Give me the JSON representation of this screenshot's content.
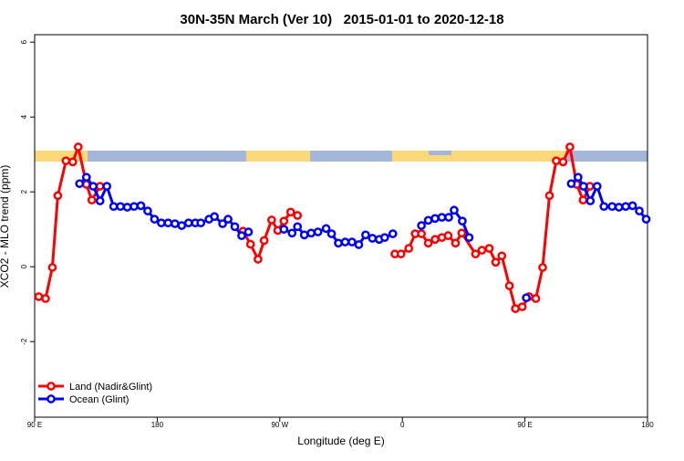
{
  "chart_data": {
    "type": "line",
    "title": "30N-35N March (Ver 10)   2015-01-01 to 2020-12-18",
    "xlabel": "Longitude (deg E)",
    "ylabel": "XCO2 - MLO trend (ppm)",
    "xlim": [
      90,
      540
    ],
    "ylim": [
      -4.02,
      6.2
    ],
    "xticks": [
      {
        "value": 90,
        "label": "90 E"
      },
      180,
      {
        "value": 270,
        "label": "90 W"
      },
      {
        "value": 360,
        "label": "0"
      },
      {
        "value": 450,
        "label": "90 E"
      },
      {
        "value": 540,
        "label": "180"
      }
    ],
    "yticks": [
      -2,
      0,
      2,
      4,
      6
    ],
    "legend": "bottom-left",
    "series": [
      {
        "name": "Land (Nadir&Glint)",
        "color": "#ff0000",
        "x": [
          93,
          98,
          103,
          107,
          113,
          118,
          122,
          128,
          132,
          138,
          null,
          243,
          248.5,
          254,
          258.5,
          264,
          268.5,
          273,
          278,
          283,
          null,
          354.5,
          359,
          364.7,
          369.4,
          374,
          379,
          384,
          389,
          393.6,
          399,
          403.6,
          413.7,
          418.4,
          423.8,
          428.5,
          433,
          438.6,
          443,
          448,
          453,
          458,
          463,
          468,
          473,
          478,
          483,
          488,
          492.7,
          497.7
        ],
        "values": [
          -0.8,
          -0.85,
          -0.02,
          1.9,
          2.83,
          2.8,
          3.2,
          2.2,
          1.78,
          2.15,
          null,
          0.95,
          0.6,
          0.2,
          0.7,
          1.25,
          0.97,
          1.22,
          1.46,
          1.37,
          null,
          0.34,
          0.34,
          0.49,
          0.88,
          0.88,
          0.63,
          0.73,
          0.78,
          0.83,
          0.63,
          0.9,
          0.34,
          0.44,
          0.49,
          0.12,
          0.29,
          -0.51,
          -1.12,
          -1.07,
          -0.8,
          -0.85,
          -0.02,
          1.9,
          2.83,
          2.8,
          3.2,
          2.2,
          1.78,
          2.15
        ]
      },
      {
        "name": "Ocean (Glint)",
        "color": "#0000ff",
        "x": [
          123,
          128,
          133,
          138,
          143,
          148,
          153,
          158,
          163,
          168,
          173,
          178,
          183,
          188,
          193,
          198,
          203,
          208,
          212,
          218,
          222,
          228,
          232,
          237,
          242,
          247,
          null,
          273,
          279,
          283,
          288,
          293,
          298,
          304,
          308,
          313,
          318,
          323,
          328,
          333,
          338,
          343,
          347,
          353,
          null,
          374,
          379,
          384,
          389,
          394,
          398,
          404,
          409,
          null,
          451,
          null,
          484,
          489,
          493,
          498,
          503,
          508,
          514,
          519,
          524,
          529,
          534,
          539
        ],
        "values": [
          2.22,
          2.39,
          2.15,
          1.76,
          2.15,
          1.61,
          1.61,
          1.59,
          1.61,
          1.63,
          1.49,
          1.27,
          1.17,
          1.17,
          1.15,
          1.1,
          1.17,
          1.17,
          1.17,
          1.27,
          1.34,
          1.15,
          1.27,
          1.07,
          0.83,
          0.93,
          null,
          1.0,
          0.9,
          1.07,
          0.85,
          0.9,
          0.93,
          1.02,
          0.88,
          0.63,
          0.66,
          0.66,
          0.59,
          0.85,
          0.76,
          0.73,
          0.78,
          0.88,
          null,
          1.1,
          1.24,
          1.29,
          1.32,
          1.32,
          1.51,
          1.22,
          0.78,
          null,
          -0.83,
          null,
          2.22,
          2.39,
          2.15,
          1.76,
          2.15,
          1.61,
          1.61,
          1.59,
          1.61,
          1.63,
          1.49,
          1.27
        ]
      }
    ]
  }
}
